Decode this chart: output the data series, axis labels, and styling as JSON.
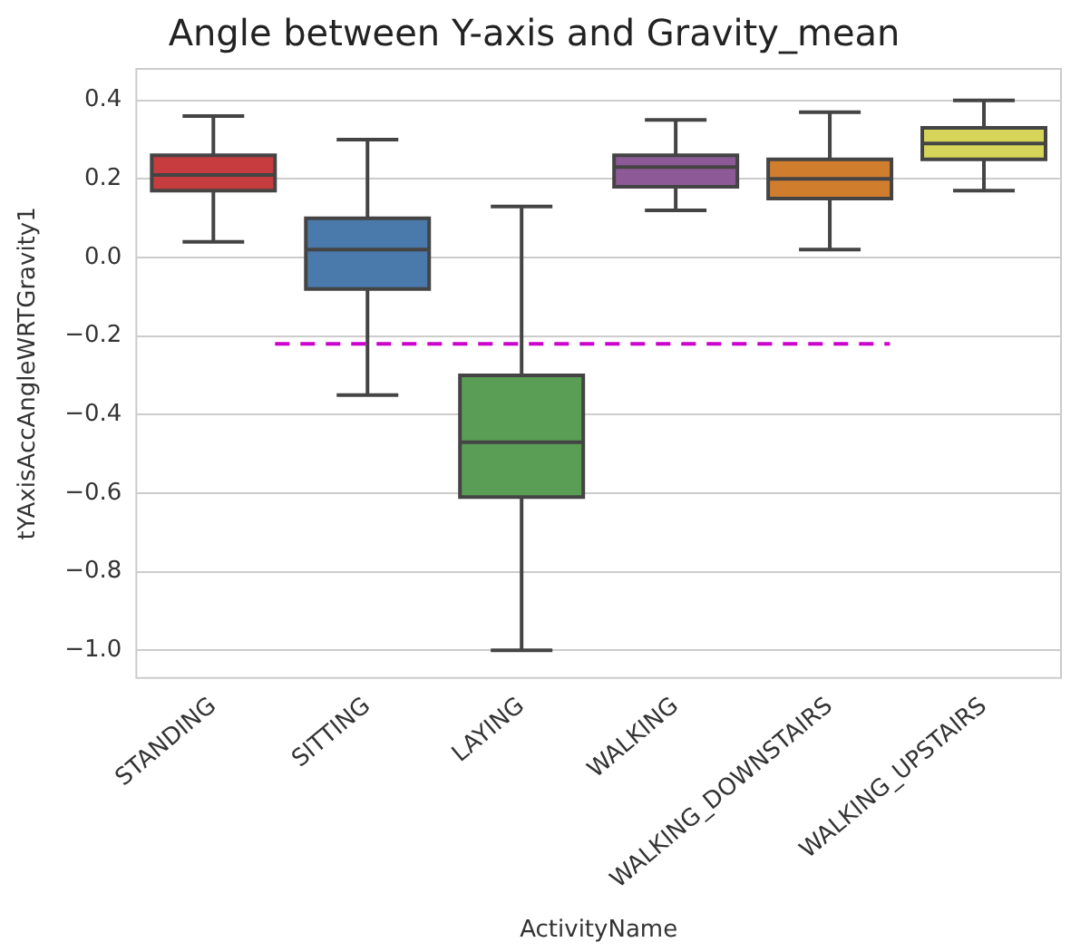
{
  "chart_data": {
    "type": "box",
    "title": "Angle between Y-axis and Gravity_mean",
    "xlabel": "ActivityName",
    "ylabel": "tYAxisAccAngleWRTGravity1",
    "categories": [
      "STANDING",
      "SITTING",
      "LAYING",
      "WALKING",
      "WALKING_DOWNSTAIRS",
      "WALKING_UPSTAIRS"
    ],
    "colors": [
      "#c73c3e",
      "#4a7aab",
      "#5a9d55",
      "#8d5a97",
      "#d17d2e",
      "#d6d55a"
    ],
    "boxes": [
      {
        "low": 0.04,
        "q1": 0.17,
        "median": 0.21,
        "q3": 0.26,
        "high": 0.36
      },
      {
        "low": -0.35,
        "q1": -0.08,
        "median": 0.02,
        "q3": 0.1,
        "high": 0.3
      },
      {
        "low": -1.0,
        "q1": -0.61,
        "median": -0.47,
        "q3": -0.3,
        "high": 0.13
      },
      {
        "low": 0.12,
        "q1": 0.18,
        "median": 0.23,
        "q3": 0.26,
        "high": 0.35
      },
      {
        "low": 0.02,
        "q1": 0.15,
        "median": 0.2,
        "q3": 0.25,
        "high": 0.37
      },
      {
        "low": 0.17,
        "q1": 0.25,
        "median": 0.29,
        "q3": 0.33,
        "high": 0.4
      }
    ],
    "ylim": [
      -1.07,
      0.48
    ],
    "yticks": [
      {
        "value": -1.0,
        "label": "−1.0"
      },
      {
        "value": -0.8,
        "label": "−0.8"
      },
      {
        "value": -0.6,
        "label": "−0.6"
      },
      {
        "value": -0.4,
        "label": "−0.4"
      },
      {
        "value": -0.2,
        "label": "−0.2"
      },
      {
        "value": 0.0,
        "label": "0.0"
      },
      {
        "value": 0.2,
        "label": "0.2"
      },
      {
        "value": 0.4,
        "label": "0.4"
      }
    ],
    "ref_lines": [
      {
        "axis": "y",
        "value": -0.22,
        "color": "#cc00cc",
        "line_style": "dashed"
      }
    ],
    "grid": "y"
  }
}
